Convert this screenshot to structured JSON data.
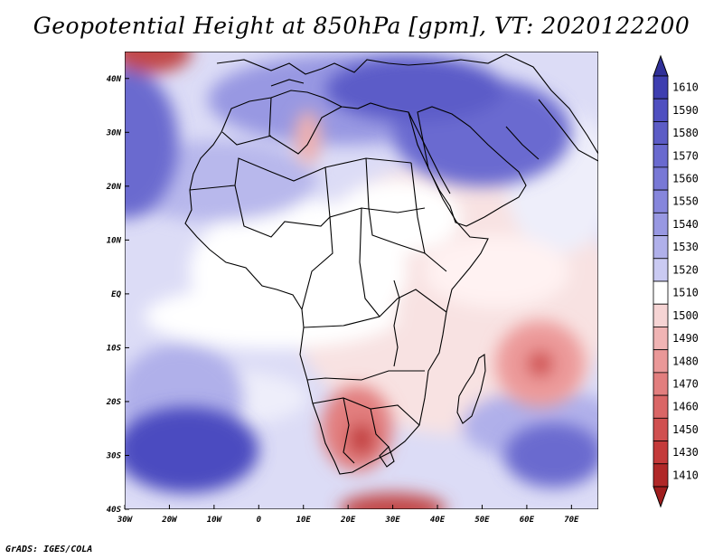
{
  "title": "Geopotential Height at 850hPa [gpm], VT: 2020122200",
  "footer": "GrADS: IGES/COLA",
  "map": {
    "lon_range": [
      -30,
      76
    ],
    "lat_range": [
      -40,
      45
    ],
    "lon_ticks": [
      {
        "lon": -30,
        "label": "30W"
      },
      {
        "lon": -20,
        "label": "20W"
      },
      {
        "lon": -10,
        "label": "10W"
      },
      {
        "lon": 0,
        "label": "0"
      },
      {
        "lon": 10,
        "label": "10E"
      },
      {
        "lon": 20,
        "label": "20E"
      },
      {
        "lon": 30,
        "label": "30E"
      },
      {
        "lon": 40,
        "label": "40E"
      },
      {
        "lon": 50,
        "label": "50E"
      },
      {
        "lon": 60,
        "label": "60E"
      },
      {
        "lon": 70,
        "label": "70E"
      }
    ],
    "lat_ticks": [
      {
        "lat": 40,
        "label": "40N"
      },
      {
        "lat": 30,
        "label": "30N"
      },
      {
        "lat": 20,
        "label": "20N"
      },
      {
        "lat": 10,
        "label": "10N"
      },
      {
        "lat": 0,
        "label": "EQ"
      },
      {
        "lat": -10,
        "label": "10S"
      },
      {
        "lat": -20,
        "label": "20S"
      },
      {
        "lat": -30,
        "label": "30S"
      },
      {
        "lat": -40,
        "label": "40S"
      }
    ],
    "features": [
      {
        "name": "high-north-africa",
        "lon": 50,
        "lat": 30,
        "rlon": 20,
        "rlat": 10,
        "shade": "#6b6bd0"
      },
      {
        "name": "high-mediterranean",
        "lon": 35,
        "lat": 38,
        "rlon": 20,
        "rlat": 6,
        "shade": "#5b5bc8"
      },
      {
        "name": "high-atlantic-north",
        "lon": -30,
        "lat": 28,
        "rlon": 12,
        "rlat": 14,
        "shade": "#6a6acf"
      },
      {
        "name": "low-nw-corner",
        "lon": -24,
        "lat": 45,
        "rlon": 9,
        "rlat": 4,
        "shade": "#c24a4a"
      },
      {
        "name": "high-south-atlantic",
        "lon": -16,
        "lat": -29,
        "rlon": 16,
        "rlat": 8,
        "shade": "#4b4bc0"
      },
      {
        "name": "high-south-indian",
        "lon": 66,
        "lat": -30,
        "rlon": 11,
        "rlat": 6,
        "shade": "#6a6acf"
      },
      {
        "name": "low-madagascar-east",
        "lon": 63,
        "lat": -13,
        "rlon": 10,
        "rlat": 8,
        "shade": "#ec9a9a"
      },
      {
        "name": "low-madagascar-core",
        "lon": 63,
        "lat": -13,
        "rlon": 3,
        "rlat": 2.5,
        "shade": "#d05050"
      },
      {
        "name": "low-southern-africa",
        "lon": 22,
        "lat": -25,
        "rlon": 8,
        "rlat": 8,
        "shade": "#e27e7e"
      },
      {
        "name": "low-southern-africa-core",
        "lon": 23,
        "lat": -27,
        "rlon": 3,
        "rlat": 3,
        "shade": "#c23c3c"
      },
      {
        "name": "low-south-ocean",
        "lon": 30,
        "lat": -40,
        "rlon": 12,
        "rlat": 3,
        "shade": "#c24a4a"
      },
      {
        "name": "low-sahara",
        "lon": 11,
        "lat": 29,
        "rlon": 3,
        "rlat": 5,
        "shade": "#eeb0b0"
      }
    ]
  },
  "colorbar": {
    "levels": [
      "1610",
      "1590",
      "1580",
      "1570",
      "1560",
      "1550",
      "1540",
      "1530",
      "1520",
      "1510",
      "1500",
      "1490",
      "1480",
      "1470",
      "1460",
      "1450",
      "1430",
      "1410"
    ],
    "colors": [
      "#3e3eb0",
      "#4f4fc0",
      "#5c5cc6",
      "#6a6acf",
      "#7878d6",
      "#8686dc",
      "#9898e2",
      "#b0b0ea",
      "#cacaf2",
      "#ffffff",
      "#f6d4d4",
      "#f0b4b4",
      "#ea9898",
      "#e27e7e",
      "#da6666",
      "#d05050",
      "#c43a3a",
      "#b02828"
    ],
    "top_arrow": "#303098",
    "bottom_arrow": "#a01e1e"
  }
}
